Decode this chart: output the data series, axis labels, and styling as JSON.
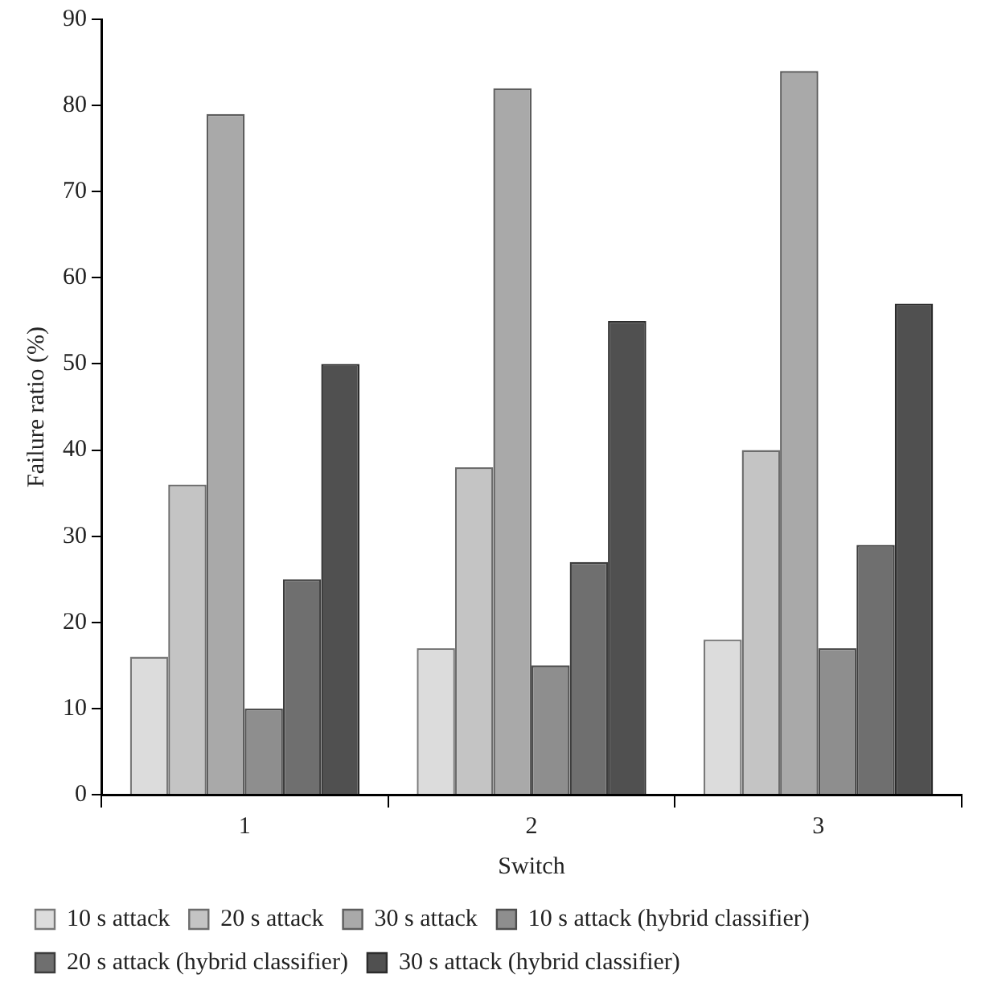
{
  "chart_data": {
    "type": "bar",
    "xlabel": "Switch",
    "ylabel": "Failure ratio (%)",
    "categories": [
      "1",
      "2",
      "3"
    ],
    "series": [
      {
        "name": "10 s attack",
        "color": "#dcdcdc",
        "values": [
          16,
          17,
          18
        ]
      },
      {
        "name": "20 s attack",
        "color": "#c4c4c4",
        "values": [
          36,
          38,
          40
        ]
      },
      {
        "name": "30 s attack",
        "color": "#a9a9a9",
        "values": [
          79,
          82,
          84
        ]
      },
      {
        "name": "10 s attack (hybrid classifier)",
        "color": "#8e8e8e",
        "values": [
          10,
          15,
          17
        ]
      },
      {
        "name": "20 s attack (hybrid classifier)",
        "color": "#6f6f6f",
        "values": [
          25,
          27,
          29
        ]
      },
      {
        "name": "30 s attack (hybrid classifier)",
        "color": "#505050",
        "values": [
          50,
          55,
          57
        ]
      }
    ],
    "ylim": [
      0,
      90
    ],
    "yticks": [
      0,
      10,
      20,
      30,
      40,
      50,
      60,
      70,
      80,
      90
    ],
    "grid": false,
    "legend": "bottom"
  }
}
